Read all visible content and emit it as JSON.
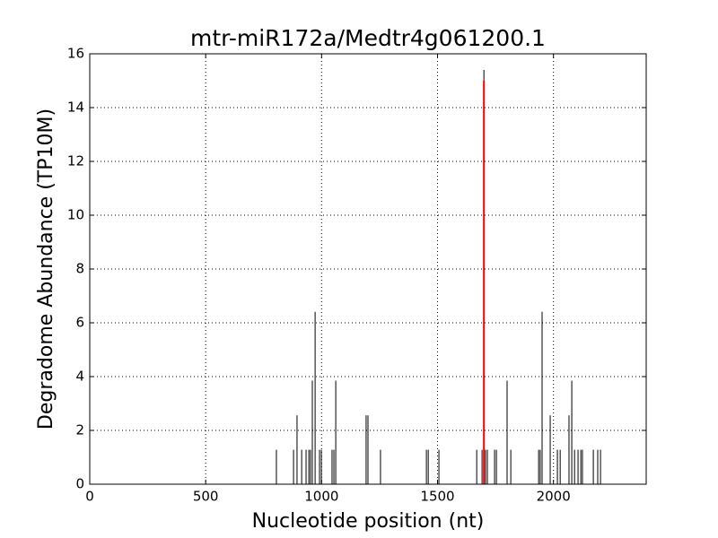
{
  "chart_data": {
    "type": "stem",
    "title": "mtr-miR172a/Medtr4g061200.1",
    "xlabel": "Nucleotide position (nt)",
    "ylabel": "Degradome Abundance (TP10M)",
    "xlim": [
      0,
      2400
    ],
    "xticks": [
      0,
      500,
      1000,
      1500,
      2000
    ],
    "ylim": [
      0,
      16
    ],
    "yticks": [
      0,
      2,
      4,
      6,
      8,
      10,
      12,
      14,
      16
    ],
    "grid": true,
    "series": [
      {
        "color": "#000000",
        "x": [
          805,
          879,
          894,
          914,
          933,
          945,
          952,
          960,
          972,
          991,
          999,
          1045,
          1053,
          1061,
          1192,
          1200,
          1254,
          1452,
          1460,
          1506,
          1669,
          1692,
          1700,
          1707,
          1715,
          1746,
          1754,
          1800,
          1816,
          1936,
          1943,
          1951,
          1986,
          2017,
          2029,
          2067,
          2079,
          2091,
          2106,
          2118,
          2125,
          2172,
          2191,
          2203
        ],
        "values": [
          1.28,
          1.28,
          2.56,
          1.28,
          1.28,
          1.28,
          1.28,
          3.85,
          6.41,
          1.28,
          1.28,
          1.28,
          1.28,
          3.85,
          2.56,
          2.56,
          1.28,
          1.28,
          1.28,
          1.28,
          1.28,
          1.28,
          15.4,
          1.28,
          1.28,
          1.28,
          1.28,
          3.85,
          1.28,
          1.28,
          1.28,
          6.41,
          2.56,
          1.28,
          1.28,
          2.56,
          3.85,
          1.28,
          1.28,
          1.28,
          1.28,
          1.28,
          1.28,
          1.28
        ]
      },
      {
        "color": "#ff0000",
        "x": [
          1700
        ],
        "values": [
          15.0
        ]
      }
    ]
  }
}
